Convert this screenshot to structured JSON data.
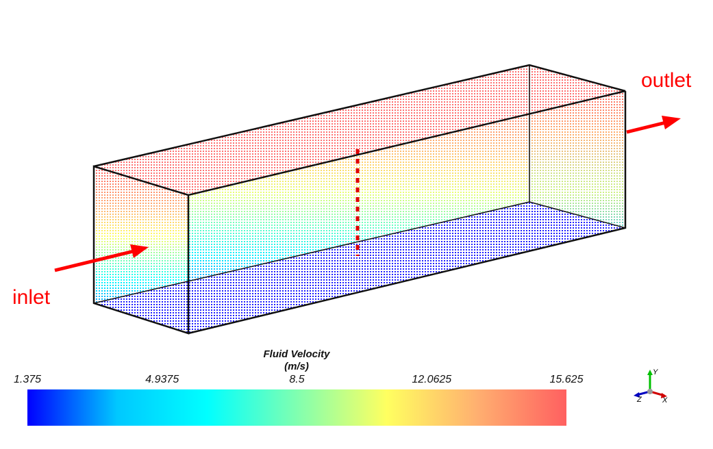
{
  "annotations": {
    "inlet": "inlet",
    "outlet": "outlet",
    "arrow_color": "#ff0000"
  },
  "colorbar": {
    "title": "Fluid Velocity",
    "unit": "(m/s)",
    "min": 1.375,
    "max": 15.625,
    "ticks": [
      "1.375",
      "4.9375",
      "8.5",
      "12.0625",
      "15.625"
    ],
    "colormap": [
      "#0000ff",
      "#00c8ff",
      "#00ffff",
      "#80ffb0",
      "#ffff60",
      "#ffb070",
      "#ff6060"
    ]
  },
  "axes_triad": {
    "x": "X",
    "y": "Y",
    "z": "Z",
    "x_color": "#d00000",
    "y_color": "#00c000",
    "z_color": "#0000c0"
  }
}
